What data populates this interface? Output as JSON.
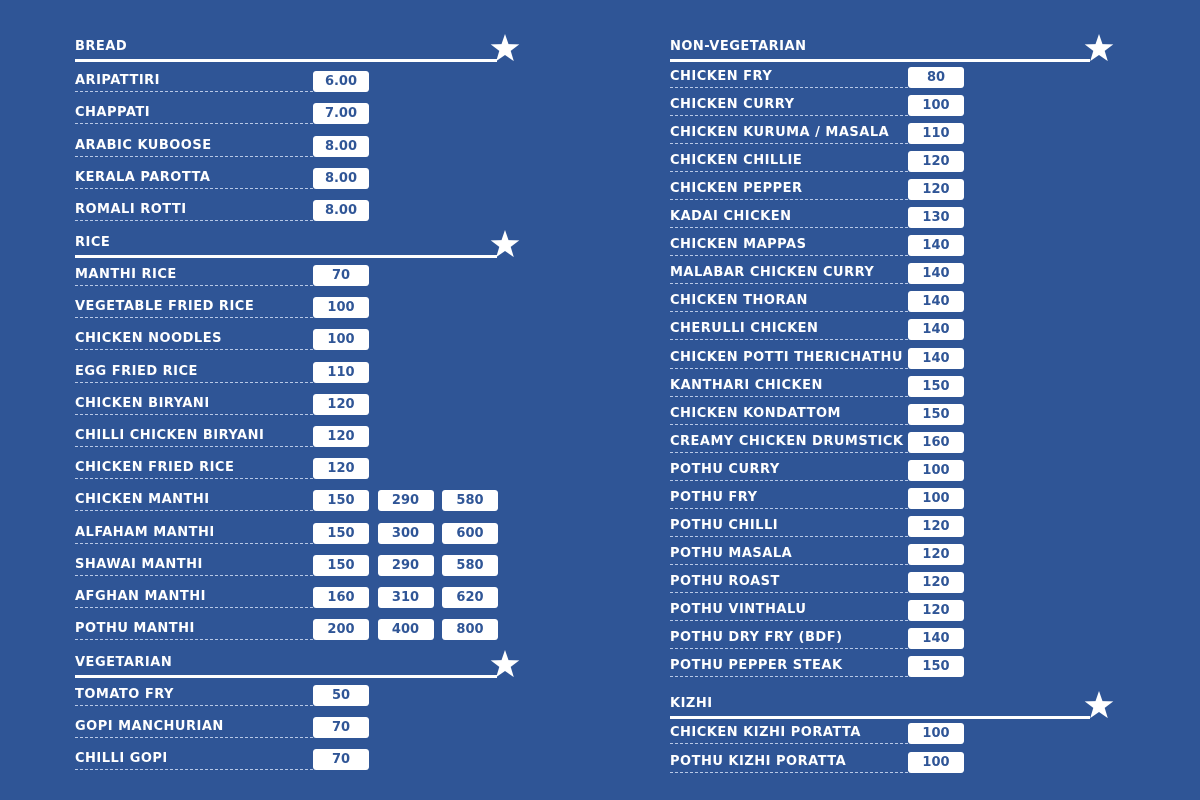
{
  "columns": [
    {
      "sections": [
        {
          "title": "BREAD",
          "items": [
            {
              "name": "ARIPATTIRI",
              "prices": [
                "6.00"
              ]
            },
            {
              "name": "CHAPPATI",
              "prices": [
                "7.00"
              ]
            },
            {
              "name": "ARABIC KUBOOSE",
              "prices": [
                "8.00"
              ]
            },
            {
              "name": "KERALA PAROTTA",
              "prices": [
                "8.00"
              ]
            },
            {
              "name": "ROMALI ROTTI",
              "prices": [
                "8.00"
              ]
            }
          ]
        },
        {
          "title": "RICE",
          "items": [
            {
              "name": "MANTHI RICE",
              "prices": [
                "70"
              ]
            },
            {
              "name": "VEGETABLE FRIED RICE",
              "prices": [
                "100"
              ]
            },
            {
              "name": "CHICKEN NOODLES",
              "prices": [
                "100"
              ]
            },
            {
              "name": "EGG FRIED RICE",
              "prices": [
                "110"
              ]
            },
            {
              "name": "CHICKEN BIRYANI",
              "prices": [
                "120"
              ]
            },
            {
              "name": "CHILLI CHICKEN BIRYANI",
              "prices": [
                "120"
              ]
            },
            {
              "name": "CHICKEN FRIED RICE",
              "prices": [
                "120"
              ]
            },
            {
              "name": "CHICKEN MANTHI",
              "prices": [
                "150",
                "290",
                "580"
              ]
            },
            {
              "name": "ALFAHAM MANTHI",
              "prices": [
                "150",
                "300",
                "600"
              ]
            },
            {
              "name": "SHAWAI MANTHI",
              "prices": [
                "150",
                "290",
                "580"
              ]
            },
            {
              "name": "AFGHAN MANTHI",
              "prices": [
                "160",
                "310",
                "620"
              ]
            },
            {
              "name": "POTHU MANTHI",
              "prices": [
                "200",
                "400",
                "800"
              ]
            }
          ]
        },
        {
          "title": "VEGETARIAN",
          "items": [
            {
              "name": "TOMATO FRY",
              "prices": [
                "50"
              ]
            },
            {
              "name": "GOPI MANCHURIAN",
              "prices": [
                "70"
              ]
            },
            {
              "name": "CHILLI GOPI",
              "prices": [
                "70"
              ]
            }
          ]
        }
      ]
    },
    {
      "sections": [
        {
          "title": "NON-VEGETARIAN",
          "items": [
            {
              "name": "CHICKEN FRY",
              "prices": [
                "80"
              ]
            },
            {
              "name": "CHICKEN CURRY",
              "prices": [
                "100"
              ]
            },
            {
              "name": "CHICKEN KURUMA / MASALA",
              "prices": [
                "110"
              ]
            },
            {
              "name": "CHICKEN CHILLIE",
              "prices": [
                "120"
              ]
            },
            {
              "name": "CHICKEN PEPPER",
              "prices": [
                "120"
              ]
            },
            {
              "name": "KADAI CHICKEN",
              "prices": [
                "130"
              ]
            },
            {
              "name": "CHICKEN MAPPAS",
              "prices": [
                "140"
              ]
            },
            {
              "name": "MALABAR CHICKEN CURRY",
              "prices": [
                "140"
              ]
            },
            {
              "name": "CHICKEN THORAN",
              "prices": [
                "140"
              ]
            },
            {
              "name": "CHERULLI CHICKEN",
              "prices": [
                "140"
              ]
            },
            {
              "name": "CHICKEN POTTI THERICHATHU",
              "prices": [
                "140"
              ]
            },
            {
              "name": "KANTHARI CHICKEN",
              "prices": [
                "150"
              ]
            },
            {
              "name": "CHICKEN KONDATTOM",
              "prices": [
                "150"
              ]
            },
            {
              "name": "CREAMY CHICKEN DRUMSTICK",
              "prices": [
                "160"
              ]
            },
            {
              "name": "POTHU CURRY",
              "prices": [
                "100"
              ]
            },
            {
              "name": "POTHU FRY",
              "prices": [
                "100"
              ]
            },
            {
              "name": "POTHU CHILLI",
              "prices": [
                "120"
              ]
            },
            {
              "name": "POTHU MASALA",
              "prices": [
                "120"
              ]
            },
            {
              "name": "POTHU ROAST",
              "prices": [
                "120"
              ]
            },
            {
              "name": "POTHU VINTHALU",
              "prices": [
                "120"
              ]
            },
            {
              "name": "POTHU DRY FRY (BDF)",
              "prices": [
                "140"
              ]
            },
            {
              "name": "POTHU PEPPER STEAK",
              "prices": [
                "150"
              ]
            }
          ]
        },
        {
          "title": "KIZHI",
          "items": [
            {
              "name": "CHICKEN KIZHI PORATTA",
              "prices": [
                "100"
              ]
            },
            {
              "name": "POTHU KIZHI PORATTA",
              "prices": [
                "100"
              ]
            }
          ]
        }
      ]
    }
  ]
}
